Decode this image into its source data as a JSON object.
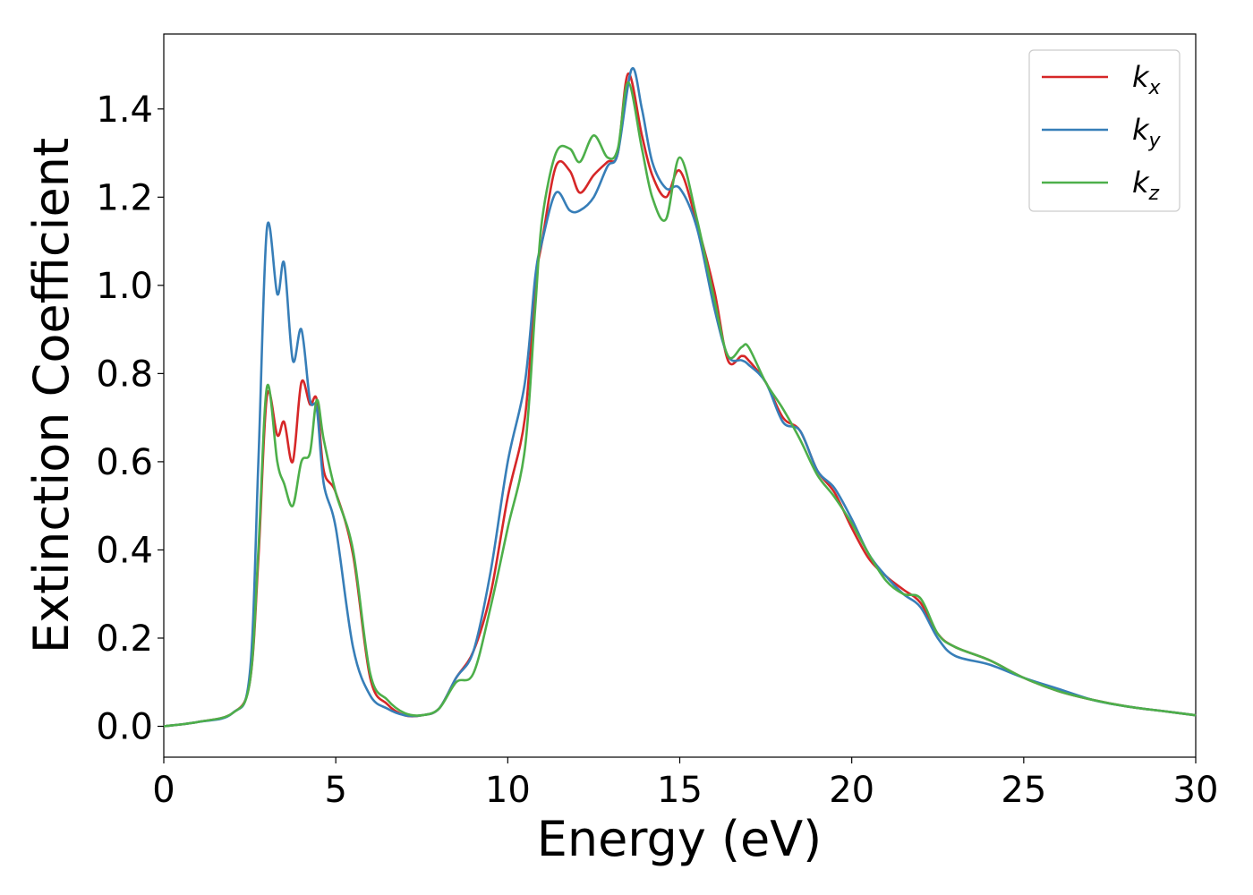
{
  "chart_data": {
    "type": "line",
    "title": "",
    "xlabel": "Energy (eV)",
    "ylabel": "Extinction Coefficient",
    "xlim": [
      0,
      30
    ],
    "ylim": [
      -0.07,
      1.57
    ],
    "xticks": [
      0,
      5,
      10,
      15,
      20,
      25,
      30
    ],
    "xtick_labels": [
      "0",
      "5",
      "10",
      "15",
      "20",
      "25",
      "30"
    ],
    "yticks": [
      0.0,
      0.2,
      0.4,
      0.6,
      0.8,
      1.0,
      1.2,
      1.4
    ],
    "ytick_labels": [
      "0.0",
      "0.2",
      "0.4",
      "0.6",
      "0.8",
      "1.0",
      "1.2",
      "1.4"
    ],
    "grid": false,
    "legend_position": "top-right",
    "series": [
      {
        "name": "k_x",
        "label_main": "k",
        "label_sub": "x",
        "color": "#d62728",
        "x": [
          0,
          1,
          2,
          2.5,
          2.75,
          3.0,
          3.3,
          3.5,
          3.75,
          4.0,
          4.25,
          4.45,
          4.65,
          5.0,
          5.5,
          6.0,
          6.5,
          7.0,
          7.5,
          8.0,
          8.5,
          9.0,
          9.5,
          10.0,
          10.5,
          10.8,
          11.0,
          11.4,
          11.8,
          12.1,
          12.5,
          12.9,
          13.2,
          13.5,
          13.9,
          14.2,
          14.6,
          15.0,
          15.5,
          16.0,
          16.4,
          16.8,
          17.0,
          17.5,
          18.0,
          18.5,
          19.0,
          19.5,
          20.0,
          20.5,
          21.0,
          21.5,
          22.0,
          22.5,
          23.0,
          24.0,
          25.0,
          26.0,
          27.0,
          28.0,
          29.0,
          30.0
        ],
        "y": [
          0.0,
          0.01,
          0.03,
          0.1,
          0.38,
          0.75,
          0.66,
          0.69,
          0.6,
          0.78,
          0.73,
          0.74,
          0.58,
          0.53,
          0.39,
          0.11,
          0.05,
          0.025,
          0.025,
          0.04,
          0.11,
          0.17,
          0.3,
          0.52,
          0.7,
          1.0,
          1.1,
          1.27,
          1.26,
          1.21,
          1.25,
          1.28,
          1.3,
          1.48,
          1.34,
          1.25,
          1.2,
          1.26,
          1.14,
          0.99,
          0.83,
          0.84,
          0.83,
          0.78,
          0.7,
          0.67,
          0.58,
          0.53,
          0.45,
          0.38,
          0.34,
          0.31,
          0.28,
          0.21,
          0.18,
          0.15,
          0.11,
          0.08,
          0.06,
          0.045,
          0.035,
          0.025
        ]
      },
      {
        "name": "k_y",
        "label_main": "k",
        "label_sub": "y",
        "color": "#377eb8",
        "x": [
          0,
          1,
          2,
          2.5,
          2.75,
          3.0,
          3.3,
          3.5,
          3.75,
          4.0,
          4.25,
          4.45,
          4.65,
          5.0,
          5.5,
          6.0,
          6.5,
          7.0,
          7.5,
          8.0,
          8.5,
          9.0,
          9.5,
          10.0,
          10.5,
          10.8,
          11.0,
          11.4,
          11.8,
          12.1,
          12.5,
          12.9,
          13.2,
          13.6,
          13.9,
          14.2,
          14.6,
          15.0,
          15.5,
          16.0,
          16.4,
          16.8,
          17.0,
          17.5,
          18.0,
          18.5,
          19.0,
          19.5,
          20.0,
          20.5,
          21.0,
          21.5,
          22.0,
          22.5,
          23.0,
          24.0,
          25.0,
          26.0,
          27.0,
          28.0,
          29.0,
          30.0
        ],
        "y": [
          0.0,
          0.01,
          0.03,
          0.12,
          0.6,
          1.13,
          0.98,
          1.05,
          0.83,
          0.9,
          0.74,
          0.72,
          0.55,
          0.45,
          0.18,
          0.07,
          0.04,
          0.025,
          0.025,
          0.04,
          0.11,
          0.17,
          0.35,
          0.6,
          0.78,
          1.02,
          1.1,
          1.21,
          1.17,
          1.17,
          1.2,
          1.27,
          1.3,
          1.49,
          1.4,
          1.28,
          1.22,
          1.22,
          1.13,
          0.95,
          0.84,
          0.83,
          0.82,
          0.78,
          0.69,
          0.67,
          0.58,
          0.54,
          0.47,
          0.39,
          0.34,
          0.3,
          0.27,
          0.2,
          0.16,
          0.14,
          0.11,
          0.085,
          0.06,
          0.045,
          0.035,
          0.025
        ]
      },
      {
        "name": "k_z",
        "label_main": "k",
        "label_sub": "z",
        "color": "#4daf4a",
        "x": [
          0,
          1,
          2,
          2.5,
          2.75,
          3.0,
          3.3,
          3.5,
          3.75,
          4.0,
          4.25,
          4.45,
          4.65,
          5.0,
          5.5,
          6.0,
          6.5,
          7.0,
          7.5,
          8.0,
          8.5,
          9.0,
          9.5,
          10.0,
          10.5,
          10.8,
          11.0,
          11.4,
          11.8,
          12.1,
          12.5,
          12.9,
          13.2,
          13.5,
          13.9,
          14.2,
          14.6,
          15.0,
          15.5,
          16.0,
          16.4,
          16.8,
          17.0,
          17.5,
          18.0,
          18.5,
          19.0,
          19.5,
          20.0,
          20.5,
          21.0,
          21.5,
          22.0,
          22.5,
          23.0,
          24.0,
          25.0,
          26.0,
          27.0,
          28.0,
          29.0,
          30.0
        ],
        "y": [
          0.0,
          0.01,
          0.03,
          0.1,
          0.4,
          0.77,
          0.6,
          0.55,
          0.5,
          0.6,
          0.62,
          0.74,
          0.65,
          0.53,
          0.4,
          0.12,
          0.06,
          0.03,
          0.025,
          0.04,
          0.1,
          0.12,
          0.27,
          0.45,
          0.63,
          0.95,
          1.15,
          1.3,
          1.31,
          1.28,
          1.34,
          1.29,
          1.31,
          1.46,
          1.31,
          1.2,
          1.15,
          1.29,
          1.15,
          0.97,
          0.84,
          0.86,
          0.86,
          0.78,
          0.72,
          0.65,
          0.57,
          0.52,
          0.46,
          0.39,
          0.33,
          0.3,
          0.29,
          0.21,
          0.18,
          0.15,
          0.11,
          0.08,
          0.06,
          0.045,
          0.035,
          0.025
        ]
      }
    ]
  }
}
